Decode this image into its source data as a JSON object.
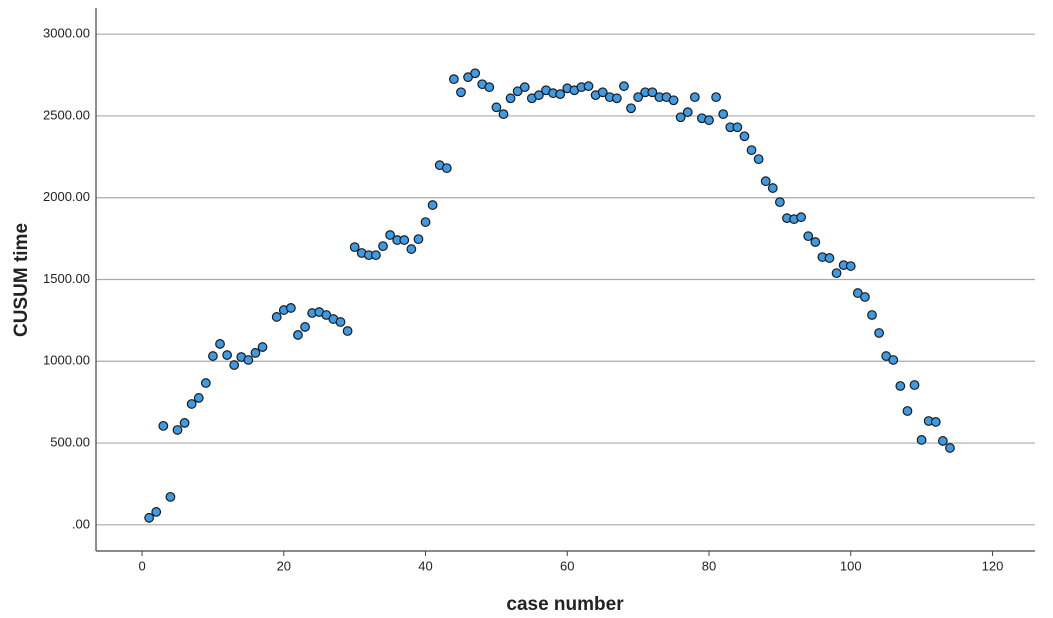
{
  "chart_data": {
    "type": "scatter",
    "x_label": "case number",
    "y_label": "CUSUM  time",
    "x": [
      1,
      2,
      3,
      4,
      5,
      6,
      7,
      8,
      9,
      10,
      11,
      12,
      13,
      14,
      15,
      16,
      17,
      19,
      20,
      21,
      22,
      23,
      24,
      25,
      26,
      27,
      28,
      29,
      30,
      31,
      32,
      33,
      34,
      35,
      36,
      37,
      38,
      39,
      40,
      41,
      42,
      43,
      44,
      45,
      46,
      47,
      48,
      49,
      50,
      51,
      52,
      53,
      54,
      55,
      56,
      57,
      58,
      59,
      60,
      61,
      62,
      63,
      64,
      65,
      66,
      67,
      68,
      69,
      70,
      71,
      72,
      73,
      74,
      75,
      76,
      77,
      78,
      79,
      80,
      81,
      82,
      83,
      84,
      85,
      86,
      87,
      88,
      89,
      90,
      91,
      92,
      93,
      94,
      95,
      96,
      97,
      98,
      99,
      100,
      101,
      102,
      103,
      104,
      105,
      106,
      107,
      108,
      109,
      110,
      111,
      112,
      113,
      114
    ],
    "values": [
      43,
      79,
      605,
      171,
      580,
      623,
      739,
      776,
      867,
      1032,
      1106,
      1038,
      977,
      1026,
      1008,
      1051,
      1087,
      1271,
      1313,
      1326,
      1161,
      1210,
      1295,
      1301,
      1283,
      1258,
      1240,
      1185,
      1698,
      1662,
      1649,
      1649,
      1704,
      1772,
      1741,
      1741,
      1686,
      1747,
      1851,
      1955,
      2199,
      2181,
      2725,
      2645,
      2737,
      2761,
      2694,
      2676,
      2553,
      2511,
      2608,
      2651,
      2676,
      2608,
      2627,
      2657,
      2639,
      2633,
      2669,
      2657,
      2676,
      2682,
      2627,
      2645,
      2615,
      2608,
      2682,
      2547,
      2615,
      2645,
      2645,
      2615,
      2615,
      2596,
      2492,
      2523,
      2615,
      2486,
      2474,
      2615,
      2511,
      2431,
      2431,
      2376,
      2291,
      2236,
      2101,
      2059,
      1973,
      1875,
      1869,
      1881,
      1765,
      1729,
      1637,
      1631,
      1539,
      1588,
      1582,
      1417,
      1393,
      1283,
      1173,
      1032,
      1008,
      849,
      696,
      855,
      519,
      635,
      629,
      513,
      470
    ],
    "color": "#3d9be3",
    "xlim": [
      -6.5,
      126
    ],
    "ylim": [
      -160,
      3160
    ],
    "xticks": [
      0,
      20,
      40,
      60,
      80,
      100,
      120
    ],
    "yticks": [
      {
        "value": 0,
        "label": ".00"
      },
      {
        "value": 500,
        "label": "500.00"
      },
      {
        "value": 1000,
        "label": "1000.00"
      },
      {
        "value": 1500,
        "label": "1500.00"
      },
      {
        "value": 2000,
        "label": "2000.00"
      },
      {
        "value": 2500,
        "label": "2500.00"
      },
      {
        "value": 3000,
        "label": "3000.00"
      }
    ],
    "grid": true
  }
}
